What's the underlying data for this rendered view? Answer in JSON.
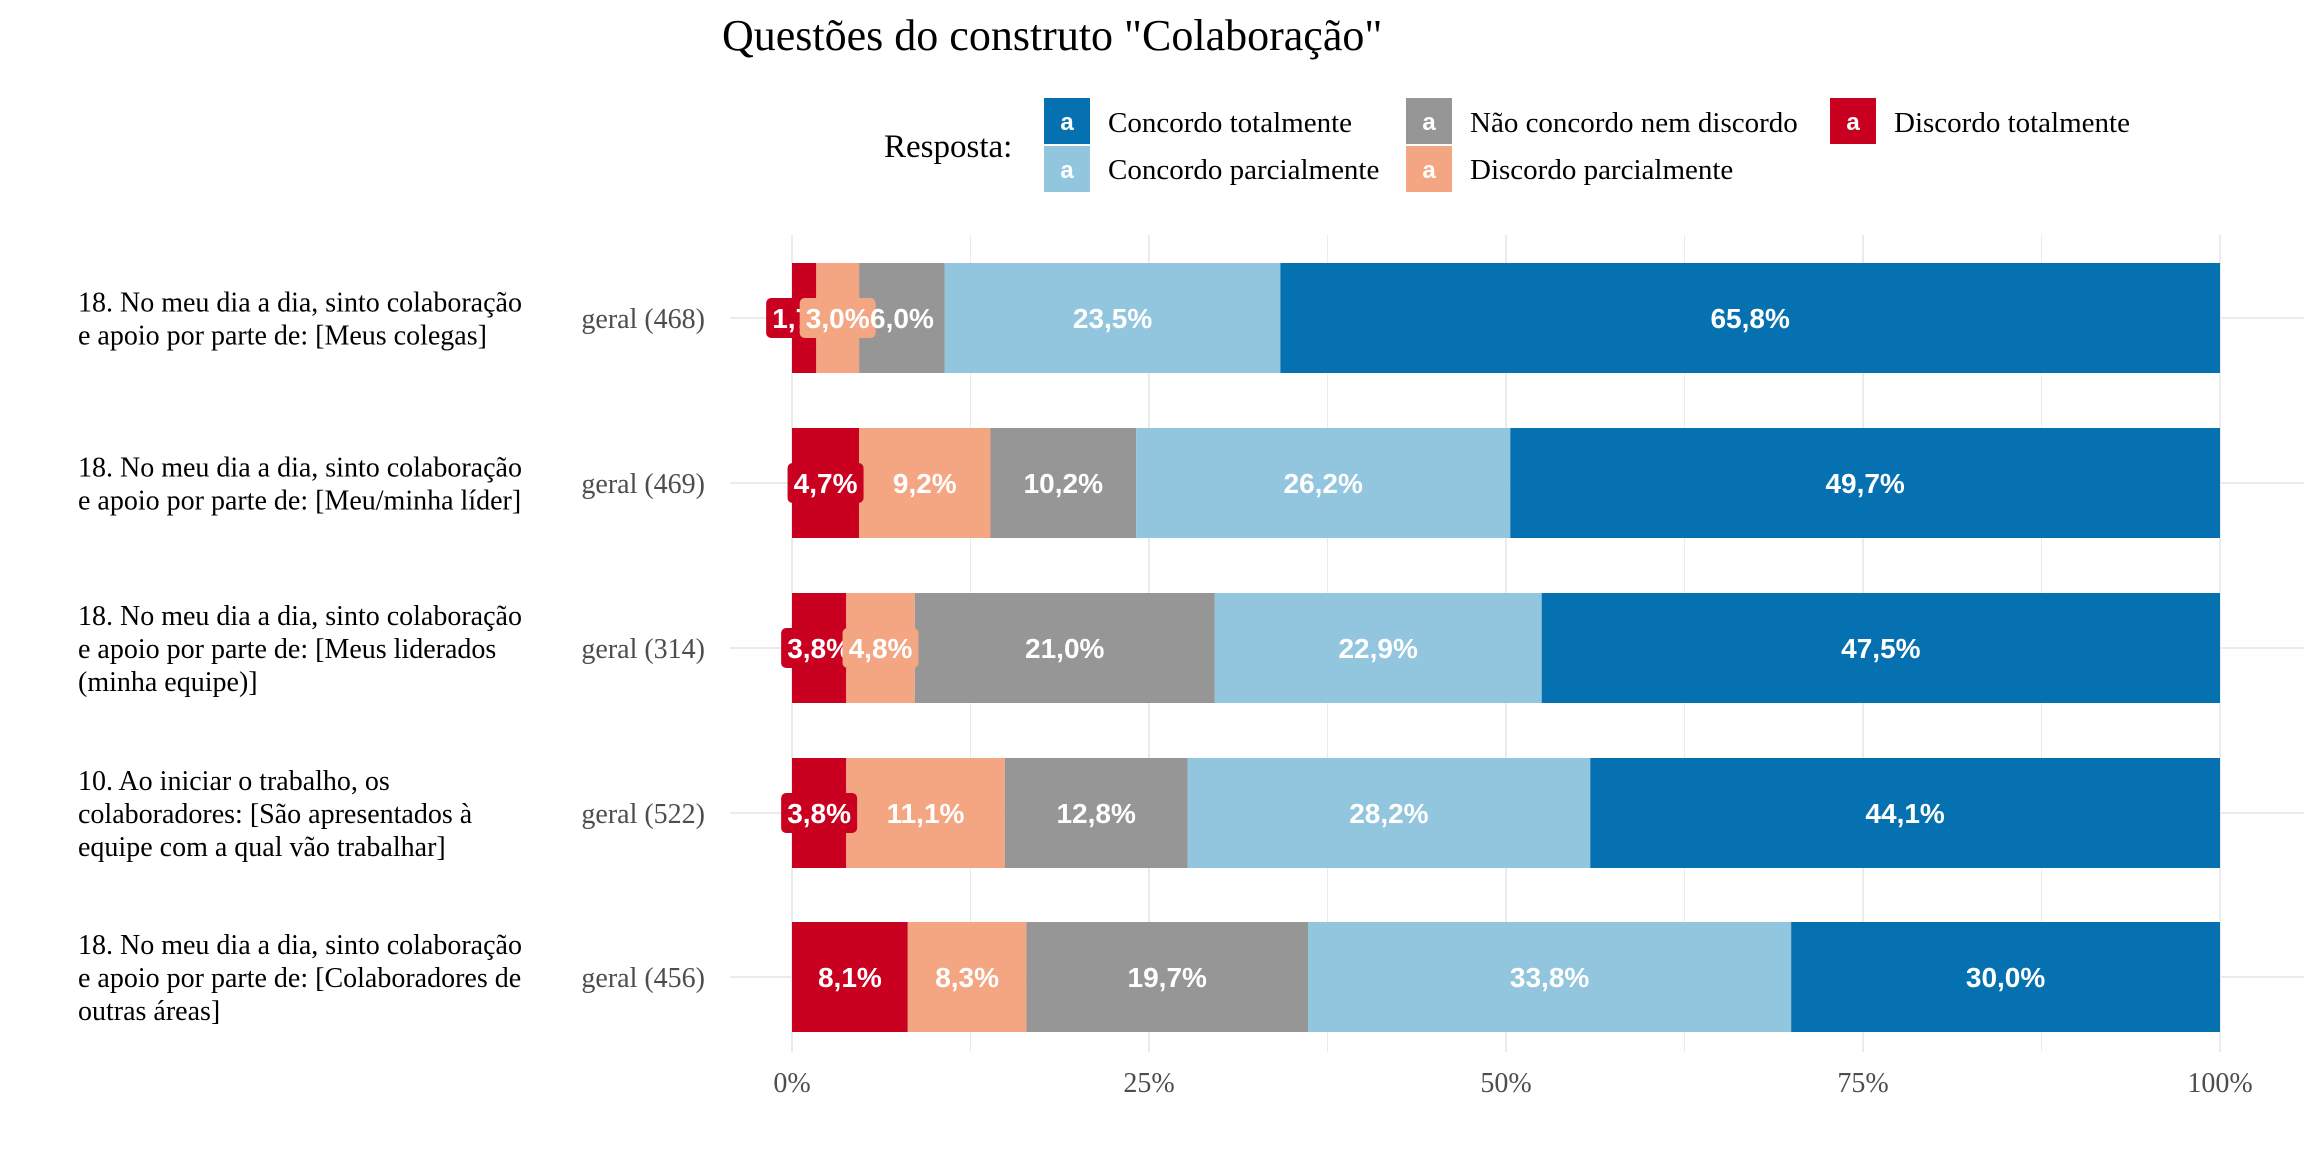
{
  "chart_data": {
    "type": "bar",
    "orientation": "horizontal",
    "stacked": "percent",
    "title": "Questões do construto \"Colaboração\"",
    "legend": {
      "title": "Resposta:",
      "position": "top",
      "key_glyph": "a",
      "order": [
        "Concordo totalmente",
        "Concordo parcialmente",
        "Não concordo nem discordo",
        "Discordo parcialmente",
        "Discordo totalmente"
      ]
    },
    "series": [
      {
        "name": "Discordo totalmente",
        "color": "#ca0020",
        "values": [
          1.7,
          4.7,
          3.8,
          3.8,
          8.1
        ],
        "labels": [
          "1,7%",
          "4,7%",
          "3,8%",
          "3,8%",
          "8,1%"
        ]
      },
      {
        "name": "Discordo parcialmente",
        "color": "#f4a582",
        "values": [
          3.0,
          9.2,
          4.8,
          11.1,
          8.3
        ],
        "labels": [
          "3,0%",
          "9,2%",
          "4,8%",
          "11,1%",
          "8,3%"
        ]
      },
      {
        "name": "Não concordo nem discordo",
        "color": "#969696",
        "values": [
          6.0,
          10.2,
          21.0,
          12.8,
          19.7
        ],
        "labels": [
          "6,0%",
          "10,2%",
          "21,0%",
          "12,8%",
          "19,7%"
        ]
      },
      {
        "name": "Concordo parcialmente",
        "color": "#92c5de",
        "values": [
          23.5,
          26.2,
          22.9,
          28.2,
          33.8
        ],
        "labels": [
          "23,5%",
          "26,2%",
          "22,9%",
          "28,2%",
          "33,8%"
        ]
      },
      {
        "name": "Concordo totalmente",
        "color": "#0571b0",
        "values": [
          65.8,
          49.7,
          47.5,
          44.1,
          30.0
        ],
        "labels": [
          "65,8%",
          "49,7%",
          "47,5%",
          "44,1%",
          "30,0%"
        ]
      }
    ],
    "categories": [
      {
        "question_lines": [
          "18. No meu dia a dia, sinto colaboração",
          "e apoio por parte de: [Meus colegas]"
        ],
        "group": "geral (468)"
      },
      {
        "question_lines": [
          "18. No meu dia a dia, sinto colaboração",
          "e apoio por parte de: [Meu/minha líder]"
        ],
        "group": "geral (469)"
      },
      {
        "question_lines": [
          "18. No meu dia a dia, sinto colaboração",
          "e apoio por parte de: [Meus liderados",
          "(minha equipe)]"
        ],
        "group": "geral (314)"
      },
      {
        "question_lines": [
          "10. Ao iniciar o trabalho, os",
          "colaboradores: [São apresentados à",
          "equipe com a qual vão trabalhar]"
        ],
        "group": "geral (522)"
      },
      {
        "question_lines": [
          "18. No meu dia a dia, sinto colaboração",
          "e apoio por parte de: [Colaboradores de",
          "outras áreas]"
        ],
        "group": "geral (456)"
      }
    ],
    "x_axis": {
      "ticks": [
        0,
        25,
        50,
        75,
        100
      ],
      "tick_labels": [
        "0%",
        "25%",
        "50%",
        "75%",
        "100%"
      ],
      "xlim": [
        0,
        100
      ]
    },
    "grid": true
  }
}
